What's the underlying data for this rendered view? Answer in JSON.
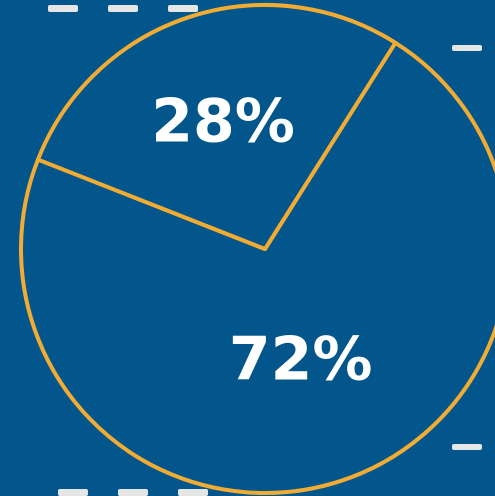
{
  "chart_data": {
    "type": "pie",
    "categories": [
      "",
      ""
    ],
    "values": [
      72,
      28
    ],
    "data_labels": [
      "72%",
      "28%"
    ],
    "title": "",
    "legend": "none"
  },
  "colors": {
    "background": "#03568b",
    "outline": "#f2ac33",
    "label": "#ffffff",
    "dash": "#e6e6e6"
  }
}
